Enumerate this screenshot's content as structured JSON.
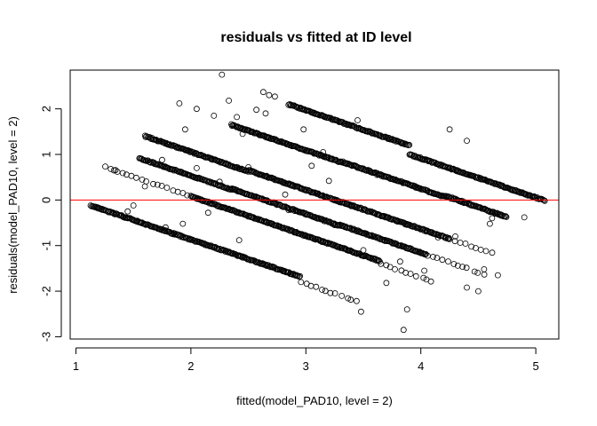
{
  "chart_data": {
    "type": "scatter",
    "title": "residuals vs fitted at ID level",
    "xlabel": "fitted(model_PAD10, level = 2)",
    "ylabel": "residuals(model_PAD10, level = 2)",
    "xlim": [
      0.95,
      5.2
    ],
    "ylim": [
      -3.05,
      2.85
    ],
    "x_ticks": [
      1,
      2,
      3,
      4,
      5
    ],
    "y_ticks": [
      -3,
      -2,
      -1,
      0,
      1,
      2
    ],
    "reference_line": {
      "y": 0,
      "color": "#ff0000"
    },
    "point_color": "#000000",
    "band_slope": -0.86,
    "bands": [
      {
        "id": "b1",
        "x_start": 1.13,
        "x_end": 2.1,
        "y_start": -0.12,
        "note": "dense"
      },
      {
        "id": "b2",
        "x_start": 2.1,
        "x_end": 2.95,
        "y_start": -0.95,
        "note": "dense"
      },
      {
        "id": "b3",
        "x_start": 2.95,
        "x_end": 3.45,
        "y_start": -1.8,
        "note": "sparse"
      },
      {
        "id": "b4",
        "x_start": 1.26,
        "x_end": 2.0,
        "y_start": 0.72,
        "note": "sparse"
      },
      {
        "id": "b5",
        "x_start": 2.0,
        "x_end": 2.9,
        "y_start": 0.08,
        "note": "dense"
      },
      {
        "id": "b6",
        "x_start": 2.9,
        "x_end": 3.65,
        "y_start": -0.7,
        "note": "dense"
      },
      {
        "id": "b7",
        "x_start": 3.65,
        "x_end": 4.1,
        "y_start": -1.4,
        "note": "sparse"
      },
      {
        "id": "b8",
        "x_start": 1.55,
        "x_end": 2.35,
        "y_start": 0.92,
        "note": "dense"
      },
      {
        "id": "b9",
        "x_start": 2.35,
        "x_end": 3.3,
        "y_start": 0.25,
        "note": "dense"
      },
      {
        "id": "b10",
        "x_start": 3.3,
        "x_end": 4.05,
        "y_start": -0.55,
        "note": "dense"
      },
      {
        "id": "b11",
        "x_start": 4.05,
        "x_end": 4.55,
        "y_start": -1.2,
        "note": "sparse"
      },
      {
        "id": "b12",
        "x_start": 1.6,
        "x_end": 2.5,
        "y_start": 1.4,
        "note": "dense"
      },
      {
        "id": "b13",
        "x_start": 2.5,
        "x_end": 3.4,
        "y_start": 0.65,
        "note": "dense"
      },
      {
        "id": "b14",
        "x_start": 3.4,
        "x_end": 4.25,
        "y_start": -0.12,
        "note": "dense"
      },
      {
        "id": "b15",
        "x_start": 4.25,
        "x_end": 4.62,
        "y_start": -0.85,
        "note": "sparse"
      },
      {
        "id": "b16",
        "x_start": 2.35,
        "x_end": 3.3,
        "y_start": 1.65,
        "note": "dense"
      },
      {
        "id": "b17",
        "x_start": 3.3,
        "x_end": 4.2,
        "y_start": 0.85,
        "note": "dense"
      },
      {
        "id": "b18",
        "x_start": 4.2,
        "x_end": 4.75,
        "y_start": 0.1,
        "note": "dense"
      },
      {
        "id": "b19",
        "x_start": 2.85,
        "x_end": 3.9,
        "y_start": 2.1,
        "note": "dense"
      },
      {
        "id": "b20",
        "x_start": 3.9,
        "x_end": 5.08,
        "y_start": 1.0,
        "note": "dense"
      }
    ],
    "outliers": [
      [
        2.27,
        2.75
      ],
      [
        1.9,
        2.12
      ],
      [
        2.05,
        2.0
      ],
      [
        2.33,
        2.18
      ],
      [
        2.4,
        1.82
      ],
      [
        2.63,
        2.37
      ],
      [
        2.68,
        2.3
      ],
      [
        2.73,
        2.27
      ],
      [
        2.57,
        1.98
      ],
      [
        2.65,
        1.9
      ],
      [
        1.95,
        1.55
      ],
      [
        2.2,
        1.85
      ],
      [
        2.45,
        1.45
      ],
      [
        1.75,
        0.88
      ],
      [
        2.05,
        0.7
      ],
      [
        2.25,
        0.4
      ],
      [
        2.5,
        0.72
      ],
      [
        2.82,
        0.12
      ],
      [
        3.05,
        0.75
      ],
      [
        3.2,
        0.42
      ],
      [
        1.5,
        -0.12
      ],
      [
        1.45,
        -0.25
      ],
      [
        1.78,
        -0.6
      ],
      [
        1.93,
        -0.52
      ],
      [
        2.15,
        -0.28
      ],
      [
        2.42,
        -0.88
      ],
      [
        2.85,
        -0.22
      ],
      [
        3.25,
        -0.55
      ],
      [
        3.5,
        -1.1
      ],
      [
        3.7,
        -1.82
      ],
      [
        3.82,
        -1.35
      ],
      [
        3.48,
        -2.45
      ],
      [
        3.88,
        -2.4
      ],
      [
        3.85,
        -2.85
      ],
      [
        4.03,
        -1.55
      ],
      [
        4.15,
        -0.82
      ],
      [
        4.3,
        -0.8
      ],
      [
        4.4,
        -1.92
      ],
      [
        4.5,
        -2.0
      ],
      [
        4.55,
        -1.52
      ],
      [
        4.67,
        -1.65
      ],
      [
        4.6,
        -0.52
      ],
      [
        4.5,
        -0.15
      ],
      [
        4.62,
        -0.4
      ],
      [
        4.9,
        -0.38
      ],
      [
        3.62,
        0.55
      ],
      [
        3.95,
        0.3
      ],
      [
        3.15,
        1.05
      ],
      [
        4.4,
        1.3
      ],
      [
        4.25,
        1.55
      ],
      [
        2.98,
        1.55
      ],
      [
        3.45,
        1.75
      ],
      [
        1.33,
        0.65
      ],
      [
        1.36,
        0.62
      ],
      [
        1.6,
        0.3
      ]
    ]
  }
}
